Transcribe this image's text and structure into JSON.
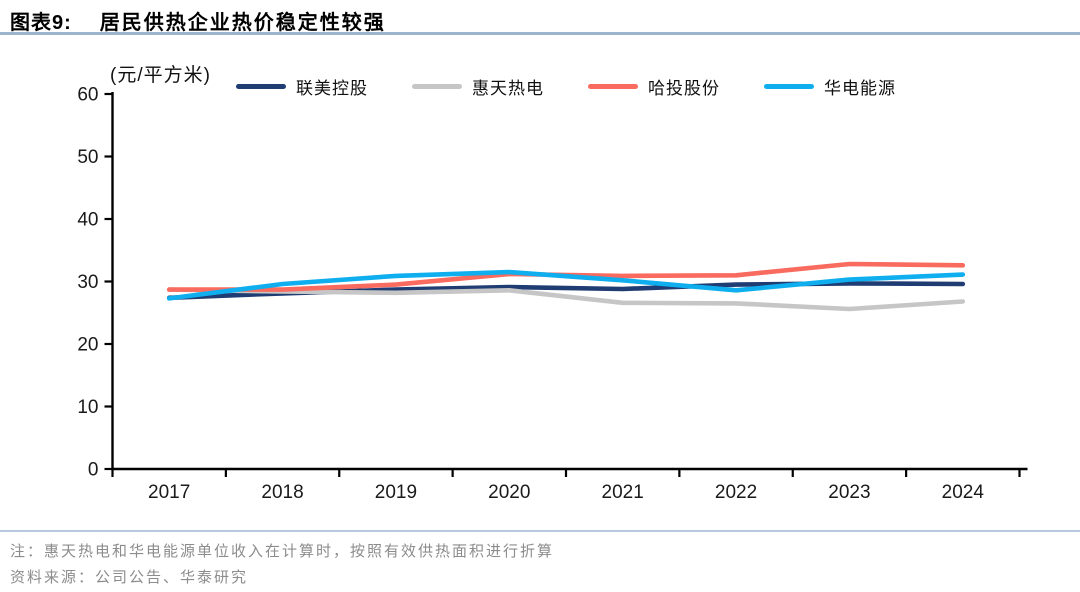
{
  "header": {
    "figure_label": "图表9:",
    "title": "居民供热企业热价稳定性较强"
  },
  "chart_data": {
    "type": "line",
    "unit_label": "(元/平方米)",
    "categories": [
      "2017",
      "2018",
      "2019",
      "2020",
      "2021",
      "2022",
      "2023",
      "2024"
    ],
    "series": [
      {
        "name": "联美控股",
        "color": "#1f3c73",
        "values": [
          27.4,
          28.1,
          28.7,
          29.1,
          28.8,
          29.5,
          29.7,
          29.6
        ]
      },
      {
        "name": "惠天热电",
        "color": "#c6c6c6",
        "values": [
          28.7,
          28.4,
          28.2,
          28.6,
          26.6,
          26.5,
          25.6,
          26.8
        ]
      },
      {
        "name": "哈投股份",
        "color": "#f96a5f",
        "values": [
          28.7,
          28.7,
          29.5,
          31.2,
          30.9,
          31.0,
          32.8,
          32.6
        ]
      },
      {
        "name": "华电能源",
        "color": "#0faeef",
        "values": [
          27.3,
          29.6,
          30.9,
          31.5,
          30.2,
          28.6,
          30.3,
          31.1
        ]
      }
    ],
    "ylim": [
      0,
      60
    ],
    "yticks": [
      0,
      10,
      20,
      30,
      40,
      50,
      60
    ],
    "xlabel": "",
    "ylabel": "",
    "legend_position": "top",
    "grid": false,
    "axis_color": "#000000",
    "tick_label_color": "#1a1a1a"
  },
  "footer": {
    "note": "注：惠天热电和华电能源单位收入在计算时，按照有效供热面积进行折算",
    "source": "资料来源：公司公告、华泰研究"
  }
}
